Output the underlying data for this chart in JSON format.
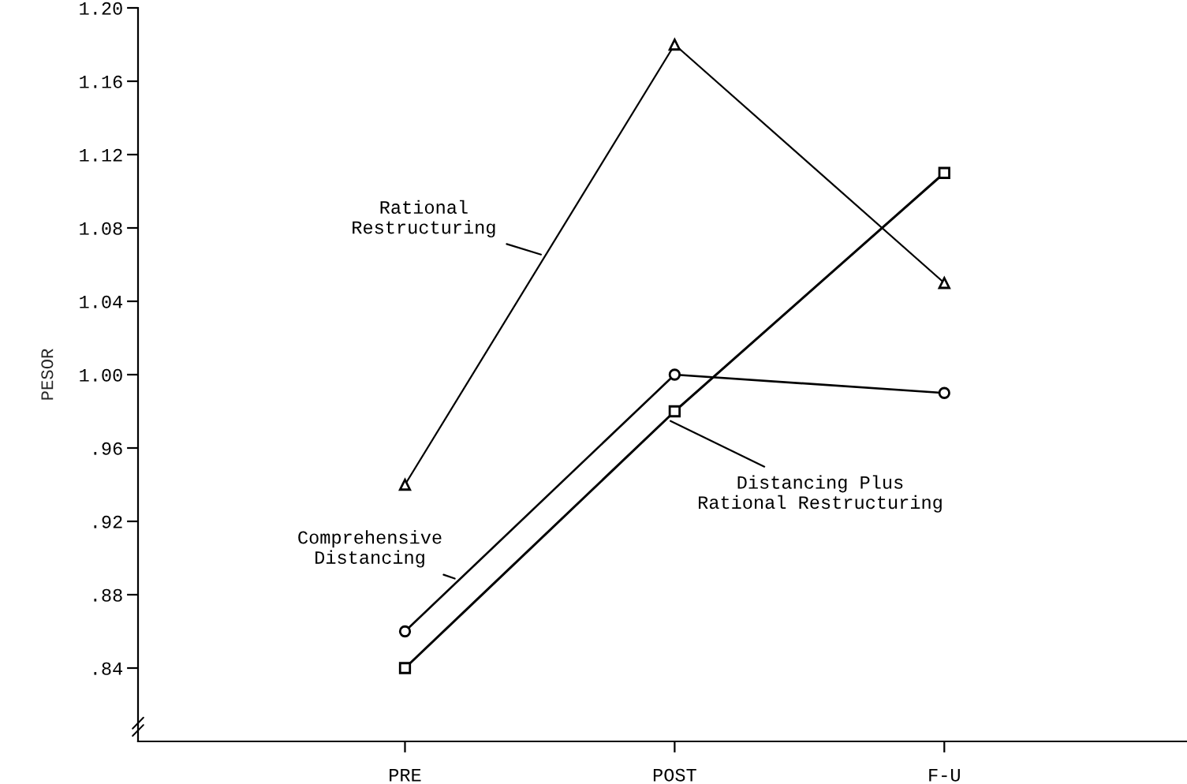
{
  "chart_data": {
    "type": "line",
    "ylabel": "PESOR",
    "categories": [
      "PRE",
      "POST",
      "F-U"
    ],
    "series": [
      {
        "name": "Rational Restructuring",
        "color": "#000000",
        "marker": "triangle",
        "values": [
          0.94,
          1.18,
          1.05
        ]
      },
      {
        "name": "Comprehensive Distancing",
        "color": "#000000",
        "marker": "circle",
        "values": [
          0.86,
          1.0,
          0.99
        ]
      },
      {
        "name": "Distancing Plus Rational Restructuring",
        "color": "#000000",
        "marker": "square",
        "values": [
          0.84,
          0.98,
          1.11
        ]
      }
    ],
    "ylim": [
      0.8,
      1.2
    ],
    "yticks": [
      {
        "value": 0.84,
        "label": ".84"
      },
      {
        "value": 0.88,
        "label": ".88"
      },
      {
        "value": 0.92,
        "label": ".92"
      },
      {
        "value": 0.96,
        "label": ".96"
      },
      {
        "value": 1.0,
        "label": "1.00"
      },
      {
        "value": 1.04,
        "label": "1.04"
      },
      {
        "value": 1.08,
        "label": "1.08"
      },
      {
        "value": 1.12,
        "label": "1.12"
      },
      {
        "value": 1.16,
        "label": "1.16"
      },
      {
        "value": 1.2,
        "label": "1.20"
      }
    ],
    "grid": false,
    "legend": false,
    "line_style": "solid"
  }
}
